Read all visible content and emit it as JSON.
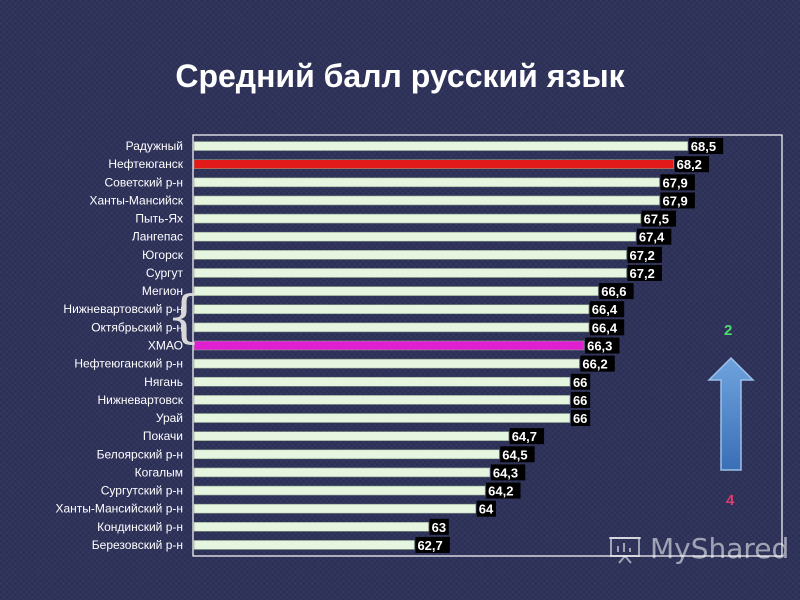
{
  "slide": {
    "title": "Средний балл русский язык"
  },
  "chart_data": {
    "type": "bar",
    "orientation": "horizontal",
    "title": "",
    "xlabel": "",
    "ylabel": "",
    "xlim": [
      58,
      70.5
    ],
    "grid": false,
    "categories": [
      "Радужный",
      "Нефтеюганск",
      "Советский р-н",
      "Ханты-Мансийск",
      "Пыть-Ях",
      "Лангепас",
      "Югорск",
      "Сургут",
      "Мегион",
      "Нижневартовский р-н",
      "Октябрьский р-н",
      "ХМАО",
      "Нефтеюганский р-н",
      "Нягань",
      "Нижневартовск",
      "Урай",
      "Покачи",
      "Белоярский р-н",
      "Когалым",
      "Сургутский р-н",
      "Ханты-Мансийский р-н",
      "Кондинский р-н",
      "Березовский р-н"
    ],
    "values": [
      68.5,
      68.2,
      67.9,
      67.9,
      67.5,
      67.4,
      67.2,
      67.2,
      66.6,
      66.4,
      66.4,
      66.3,
      66.2,
      66,
      66,
      66,
      64.7,
      64.5,
      64.3,
      64.2,
      64,
      63,
      62.7
    ],
    "value_labels": [
      "68,5",
      "68,2",
      "67,9",
      "67,9",
      "67,5",
      "67,4",
      "67,2",
      "67,2",
      "66,6",
      "66,4",
      "66,4",
      "66,3",
      "66,2",
      "66",
      "66",
      "66",
      "64,7",
      "64,5",
      "64,3",
      "64,2",
      "64",
      "63",
      "62,7"
    ],
    "colors": {
      "default": "#e6f5e0",
      "highlights": {
        "Нефтеюганск": "#e21a1a",
        "ХМАО": "#e020d0"
      }
    }
  },
  "side_annotations": {
    "top_rank": "2",
    "bottom_rank": "4",
    "top_color": "#4ddc6e",
    "bottom_color": "#e23b6d",
    "arrow_icon": "up-arrow-icon"
  },
  "watermark": {
    "text": "MyShared",
    "icon": "presentation-board-icon"
  }
}
